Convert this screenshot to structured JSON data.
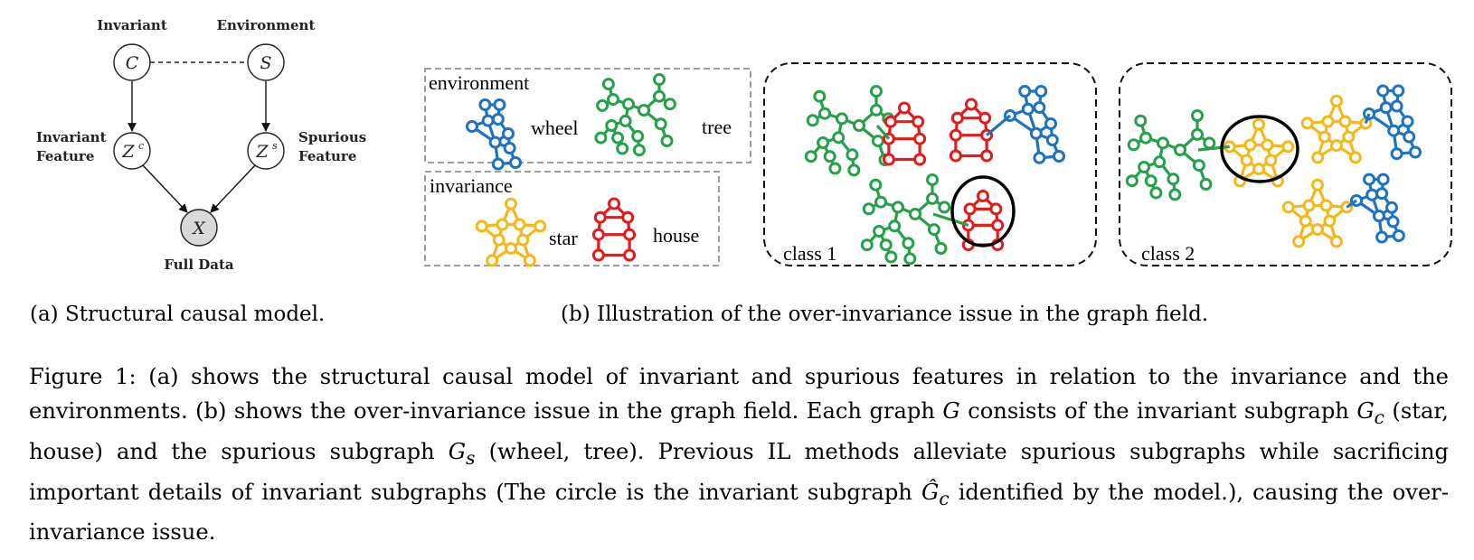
{
  "colors": {
    "wheel": "#1f72c2",
    "tree": "#26a04a",
    "star": "#f4b81b",
    "house": "#e31b1b",
    "gray_node": "#d9d9d9",
    "legend_border": "#9e9e9e"
  },
  "scm": {
    "label_invariant": "Invariant",
    "label_environment": "Environment",
    "node_c": "C",
    "node_s": "S",
    "label_invariant_feature_line1": "Invariant",
    "label_invariant_feature_line2": "Feature",
    "label_spurious_feature_line1": "Spurious",
    "label_spurious_feature_line2": "Feature",
    "node_zc": "Z",
    "node_zc_sup": "c",
    "node_zs": "Z",
    "node_zs_sup": "s",
    "node_x": "X",
    "label_full_data": "Full Data"
  },
  "legend": {
    "environment_title": "environment",
    "wheel_label": "wheel",
    "tree_label": "tree",
    "invariance_title": "invariance",
    "star_label": "star",
    "house_label": "house"
  },
  "panels": {
    "class1_label": "class 1",
    "class2_label": "class 2"
  },
  "subcaptions": {
    "a": "(a) Structural causal model.",
    "b": "(b) Illustration of the over-invariance issue in the graph field."
  },
  "caption": {
    "p1": "Figure 1: (a) shows the structural causal model of invariant and spurious features in relation to the invariance and the environments. (b) shows the over-invariance issue in the graph field. Each graph ",
    "g": "G",
    "p2": " consists of the invariant subgraph ",
    "gc": "G",
    "gc_sub": "c",
    "p3": " (star, house) and the spurious subgraph ",
    "gs": "G",
    "gs_sub": "s",
    "p4": " (wheel, tree). Previous IL methods alleviate spurious subgraphs while sacrificing important details of invariant subgraphs (The circle is the invariant subgraph ",
    "ghat": "Ĝ",
    "ghat_sub": "c",
    "p5": " identified by the model.), causing the over-invariance issue."
  }
}
